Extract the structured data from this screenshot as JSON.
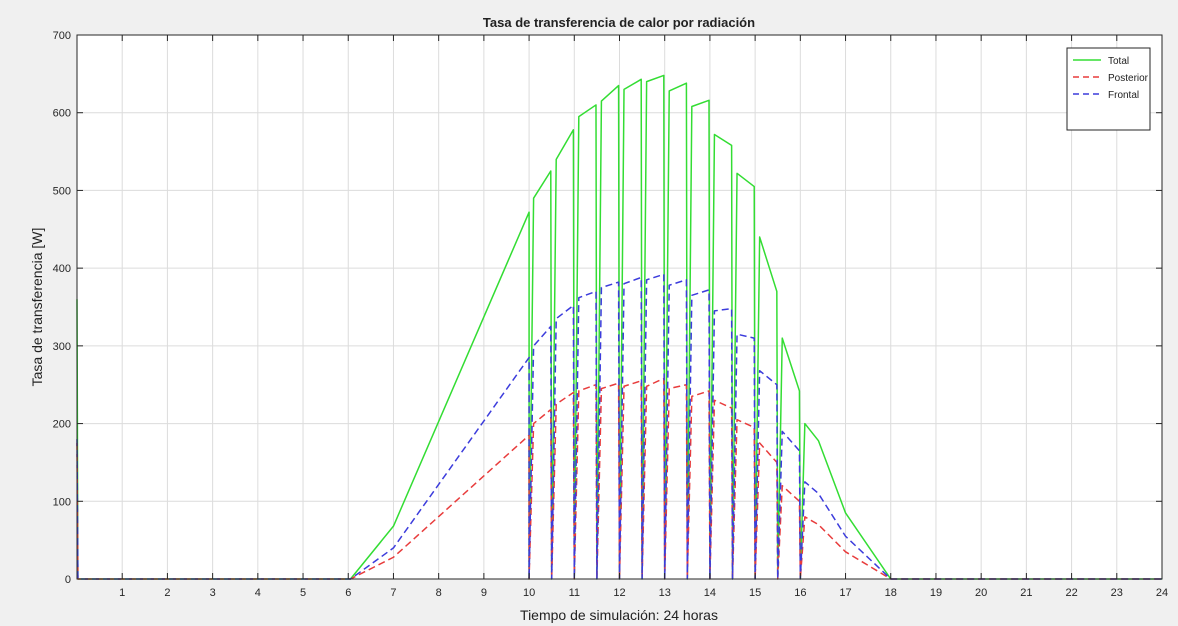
{
  "chart_data": {
    "type": "line",
    "title": "Tasa de transferencia de calor por radiación",
    "xlabel": "Tiempo de simulación: 24 horas",
    "ylabel": "Tasa de transferencia  [W]",
    "xlim": [
      0,
      24
    ],
    "ylim": [
      0,
      700
    ],
    "x_ticks": [
      1,
      2,
      3,
      4,
      5,
      6,
      7,
      8,
      9,
      10,
      11,
      12,
      13,
      14,
      15,
      16,
      17,
      18,
      19,
      20,
      21,
      22,
      23,
      24
    ],
    "y_ticks": [
      0,
      100,
      200,
      300,
      400,
      500,
      600,
      700
    ],
    "grid": true,
    "legend_position": "top-right",
    "series": [
      {
        "name": "Total",
        "color": "#33dd33",
        "style": "solid",
        "x": [
          0,
          0.02,
          0.06,
          6.05,
          7,
          10.0,
          10.0,
          10.1,
          10.48,
          10.5,
          10.5,
          10.6,
          10.98,
          11.0,
          11.0,
          11.1,
          11.48,
          11.5,
          11.5,
          11.6,
          11.98,
          12.0,
          12.0,
          12.1,
          12.48,
          12.5,
          12.5,
          12.6,
          12.98,
          13.0,
          13.0,
          13.1,
          13.48,
          13.5,
          13.5,
          13.6,
          13.98,
          14.0,
          14.0,
          14.1,
          14.48,
          14.5,
          14.5,
          14.6,
          14.98,
          15.0,
          15.0,
          15.1,
          15.48,
          15.5,
          15.5,
          15.6,
          15.98,
          16.0,
          16.0,
          16.1,
          16.4,
          17,
          18,
          24
        ],
        "y": [
          360,
          0,
          0,
          0,
          68,
          472,
          0,
          490,
          525,
          0,
          0,
          540,
          578,
          0,
          0,
          595,
          610,
          0,
          0,
          615,
          635,
          0,
          0,
          630,
          643,
          0,
          0,
          640,
          648,
          0,
          0,
          628,
          638,
          0,
          0,
          608,
          616,
          0,
          0,
          572,
          558,
          0,
          0,
          522,
          505,
          0,
          0,
          440,
          370,
          0,
          0,
          310,
          242,
          0,
          0,
          200,
          178,
          85,
          0,
          0
        ]
      },
      {
        "name": "Posterior",
        "color": "#e83c3c",
        "style": "dashed",
        "x": [
          0,
          0.02,
          0.06,
          6.05,
          7,
          10.0,
          10.0,
          10.1,
          10.48,
          10.5,
          10.5,
          10.6,
          10.98,
          11.0,
          11.0,
          11.1,
          11.48,
          11.5,
          11.5,
          11.6,
          11.98,
          12.0,
          12.0,
          12.1,
          12.48,
          12.5,
          12.5,
          12.6,
          12.98,
          13.0,
          13.0,
          13.1,
          13.48,
          13.5,
          13.5,
          13.6,
          13.98,
          14.0,
          14.0,
          14.1,
          14.48,
          14.5,
          14.5,
          14.6,
          14.98,
          15.0,
          15.0,
          15.1,
          15.48,
          15.5,
          15.5,
          15.6,
          15.98,
          16.0,
          16.0,
          16.1,
          16.4,
          17,
          18,
          24
        ],
        "y": [
          175,
          0,
          0,
          0,
          28,
          185,
          0,
          200,
          218,
          0,
          0,
          225,
          240,
          0,
          0,
          242,
          250,
          0,
          0,
          245,
          252,
          0,
          0,
          248,
          255,
          0,
          0,
          248,
          258,
          0,
          0,
          245,
          250,
          0,
          0,
          235,
          242,
          0,
          0,
          230,
          220,
          0,
          0,
          205,
          195,
          0,
          0,
          175,
          150,
          0,
          0,
          120,
          100,
          0,
          0,
          80,
          70,
          35,
          0,
          0
        ]
      },
      {
        "name": "Frontal",
        "color": "#3c3cdc",
        "style": "dashed",
        "x": [
          0,
          0.02,
          0.06,
          6.05,
          7,
          10.0,
          10.0,
          10.1,
          10.48,
          10.5,
          10.5,
          10.6,
          10.98,
          11.0,
          11.0,
          11.1,
          11.48,
          11.5,
          11.5,
          11.6,
          11.98,
          12.0,
          12.0,
          12.1,
          12.48,
          12.5,
          12.5,
          12.6,
          12.98,
          13.0,
          13.0,
          13.1,
          13.48,
          13.5,
          13.5,
          13.6,
          13.98,
          14.0,
          14.0,
          14.1,
          14.48,
          14.5,
          14.5,
          14.6,
          14.98,
          15.0,
          15.0,
          15.1,
          15.48,
          15.5,
          15.5,
          15.6,
          15.98,
          16.0,
          16.0,
          16.1,
          16.4,
          17,
          18,
          24
        ],
        "y": [
          180,
          0,
          0,
          0,
          40,
          285,
          0,
          300,
          325,
          0,
          0,
          335,
          352,
          0,
          0,
          362,
          370,
          0,
          0,
          375,
          382,
          0,
          0,
          380,
          388,
          0,
          0,
          385,
          392,
          0,
          0,
          378,
          385,
          0,
          0,
          365,
          372,
          0,
          0,
          345,
          348,
          0,
          0,
          315,
          310,
          0,
          0,
          268,
          250,
          0,
          0,
          190,
          165,
          0,
          0,
          125,
          110,
          55,
          0,
          0
        ]
      }
    ]
  }
}
